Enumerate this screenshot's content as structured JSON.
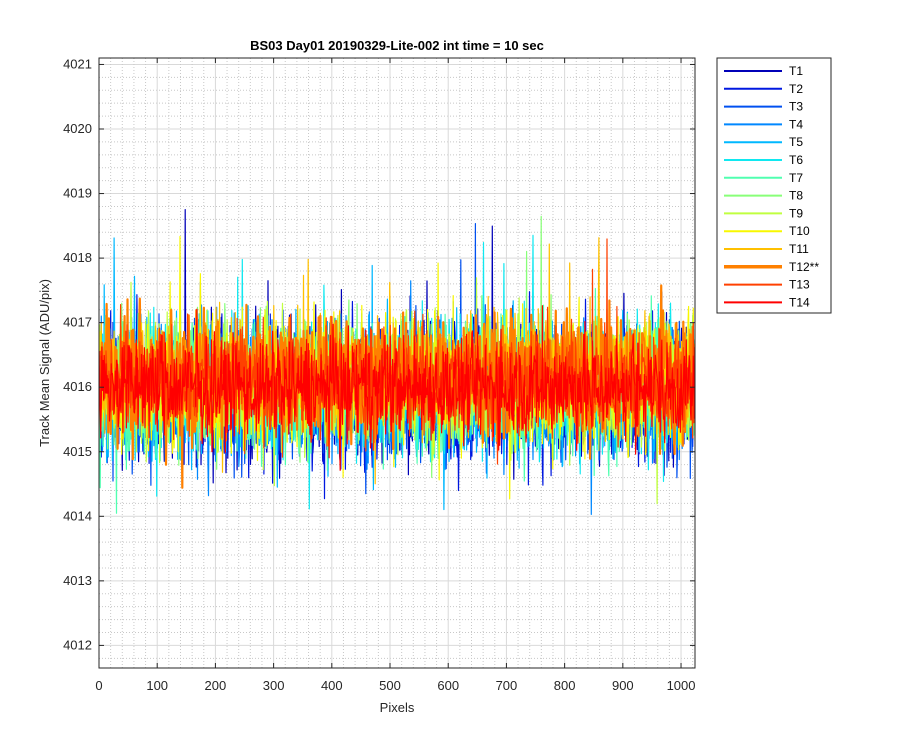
{
  "chart_data": {
    "type": "line",
    "title": "BS03 Day01 20190329-Lite-002 int time = 10 sec",
    "xlabel": "Pixels",
    "ylabel": "Track Mean Signal (ADU/pix)",
    "xlim": [
      0,
      1024
    ],
    "ylim": [
      4011.65,
      4021.1
    ],
    "xticks": [
      0,
      100,
      200,
      300,
      400,
      500,
      600,
      700,
      800,
      900,
      1000
    ],
    "yticks": [
      4012,
      4013,
      4014,
      4015,
      4016,
      4017,
      4018,
      4019,
      4020,
      4021
    ],
    "grid": true,
    "minor_grid": true,
    "legend_placement": "outside-right",
    "samples_per_series": 1024,
    "note": "Dense noisy per-pixel traces; values summarized as mean and spread per series.",
    "series": [
      {
        "name": "T1",
        "color": "#0000b8",
        "mean": 4015.9,
        "spread": 1.55,
        "bold": false
      },
      {
        "name": "T2",
        "color": "#0018e0",
        "mean": 4015.9,
        "spread": 1.55,
        "bold": false
      },
      {
        "name": "T3",
        "color": "#0050f0",
        "mean": 4015.9,
        "spread": 1.5,
        "bold": false
      },
      {
        "name": "T4",
        "color": "#0088ff",
        "mean": 4016.0,
        "spread": 1.5,
        "bold": false
      },
      {
        "name": "T5",
        "color": "#00b8ff",
        "mean": 4016.0,
        "spread": 1.5,
        "bold": false
      },
      {
        "name": "T6",
        "color": "#10e8f0",
        "mean": 4016.0,
        "spread": 1.5,
        "bold": false
      },
      {
        "name": "T7",
        "color": "#50ffb0",
        "mean": 4016.0,
        "spread": 1.5,
        "bold": false
      },
      {
        "name": "T8",
        "color": "#88ff78",
        "mean": 4016.1,
        "spread": 1.45,
        "bold": false
      },
      {
        "name": "T9",
        "color": "#c0ff40",
        "mean": 4016.1,
        "spread": 1.45,
        "bold": false
      },
      {
        "name": "T10",
        "color": "#f8f800",
        "mean": 4016.1,
        "spread": 1.45,
        "bold": false
      },
      {
        "name": "T11",
        "color": "#ffc000",
        "mean": 4016.2,
        "spread": 1.35,
        "bold": false
      },
      {
        "name": "T12**",
        "color": "#ff8000",
        "mean": 4016.2,
        "spread": 1.35,
        "bold": true
      },
      {
        "name": "T13",
        "color": "#ff4000",
        "mean": 4016.1,
        "spread": 1.25,
        "bold": false
      },
      {
        "name": "T14",
        "color": "#ff0000",
        "mean": 4016.0,
        "spread": 1.15,
        "bold": false
      }
    ]
  }
}
